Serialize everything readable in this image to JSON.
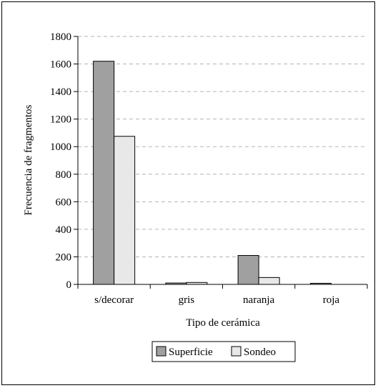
{
  "chart_data": {
    "type": "bar",
    "title": "",
    "xlabel": "Tipo de cerámica",
    "ylabel": "Frecuencia de fragmentos",
    "categories": [
      "s/decorar",
      "gris",
      "naranja",
      "roja"
    ],
    "series": [
      {
        "name": "Superficie",
        "values": [
          1620,
          10,
          210,
          8
        ],
        "color": "#a0a0a0"
      },
      {
        "name": "Sondeo",
        "values": [
          1075,
          14,
          50,
          0
        ],
        "color": "#e8e8e8"
      }
    ],
    "ylim": [
      0,
      1800
    ],
    "yticks": [
      "0",
      "200",
      "400",
      "600",
      "800",
      "1000",
      "1200",
      "1400",
      "1600",
      "1800"
    ],
    "grid": true,
    "legend_position": "bottom"
  }
}
